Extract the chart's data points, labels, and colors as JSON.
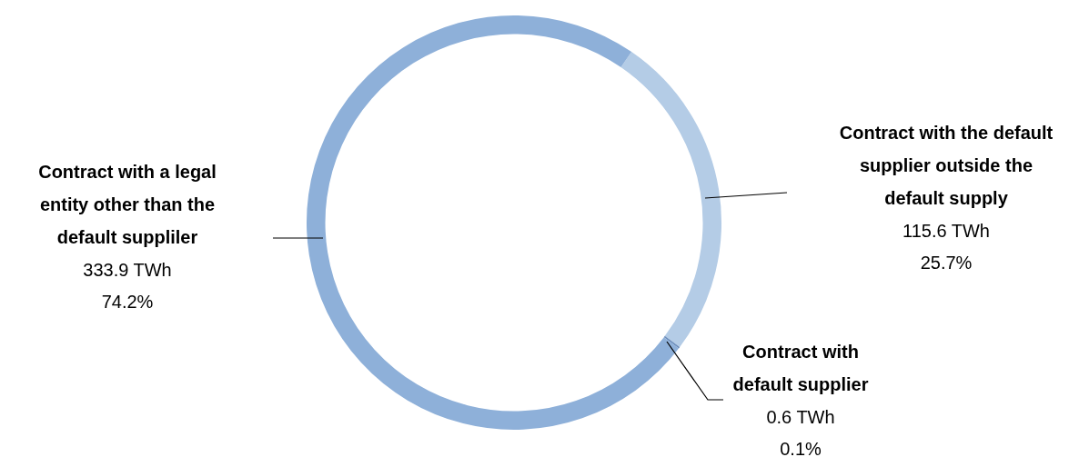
{
  "chart_data": {
    "type": "donut",
    "categories": [
      "Contract with the default supplier outside the default supply",
      "Contract with default supplier",
      "Contract with a legal entity other than the default suppliler"
    ],
    "values": [
      115.6,
      0.6,
      333.9
    ],
    "value_labels": [
      "115.6 TWh\n25.7%",
      "0.6 TWh\n0.1%",
      "333.9 TWh\n74.2%"
    ],
    "colors": [
      "#b4cce6",
      "#6d8fbd",
      "#8eb0d9"
    ],
    "legend": false
  }
}
